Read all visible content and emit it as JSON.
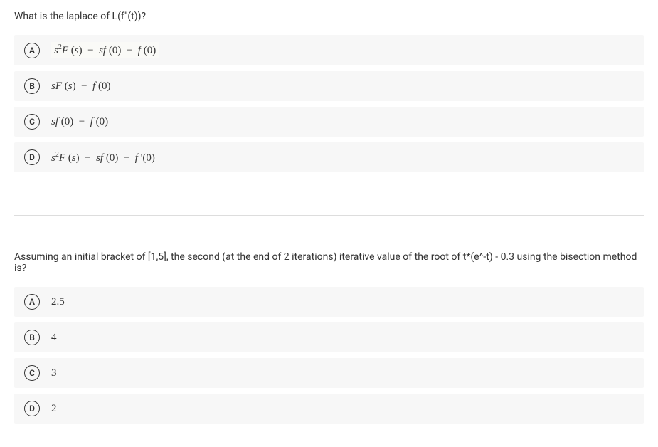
{
  "question1": {
    "text": "What is the laplace of L(f\"(t))?",
    "options": [
      {
        "letter": "A",
        "html": "<span class='math'>s</span><sup>2</sup><span class='math'>F</span> (<span class='math'>s</span>) &nbsp;&minus;&nbsp; <span class='math'>sf</span> (0) &nbsp;&minus;&nbsp; <span class='math'>f</span> (0)",
        "highlight": true
      },
      {
        "letter": "B",
        "html": "<span class='math'>sF</span> (<span class='math'>s</span>) &nbsp;&minus;&nbsp; <span class='math'>f</span> (0)",
        "highlight": false
      },
      {
        "letter": "C",
        "html": "<span class='math'>sf</span> (0) &nbsp;&minus;&nbsp; <span class='math'>f</span> (0)",
        "highlight": false
      },
      {
        "letter": "D",
        "html": "<span class='math'>s</span><sup>2</sup><span class='math'>F</span> (<span class='math'>s</span>) &nbsp;&minus;&nbsp; <span class='math'>sf</span> (0) &nbsp;&minus;&nbsp; <span class='math'>f</span> '(0)",
        "highlight": false
      }
    ]
  },
  "question2": {
    "text": "Assuming an initial bracket of [1,5], the second (at the end of 2 iterations) iterative value of the root of t*(e^-t) - 0.3 using the bisection method is?",
    "options": [
      {
        "letter": "A",
        "text": "2.5"
      },
      {
        "letter": "B",
        "text": "4"
      },
      {
        "letter": "C",
        "text": "3"
      },
      {
        "letter": "D",
        "text": "2"
      }
    ]
  },
  "colors": {
    "option_bg": "#f7f7f7",
    "text": "#333333",
    "border": "#333333"
  }
}
